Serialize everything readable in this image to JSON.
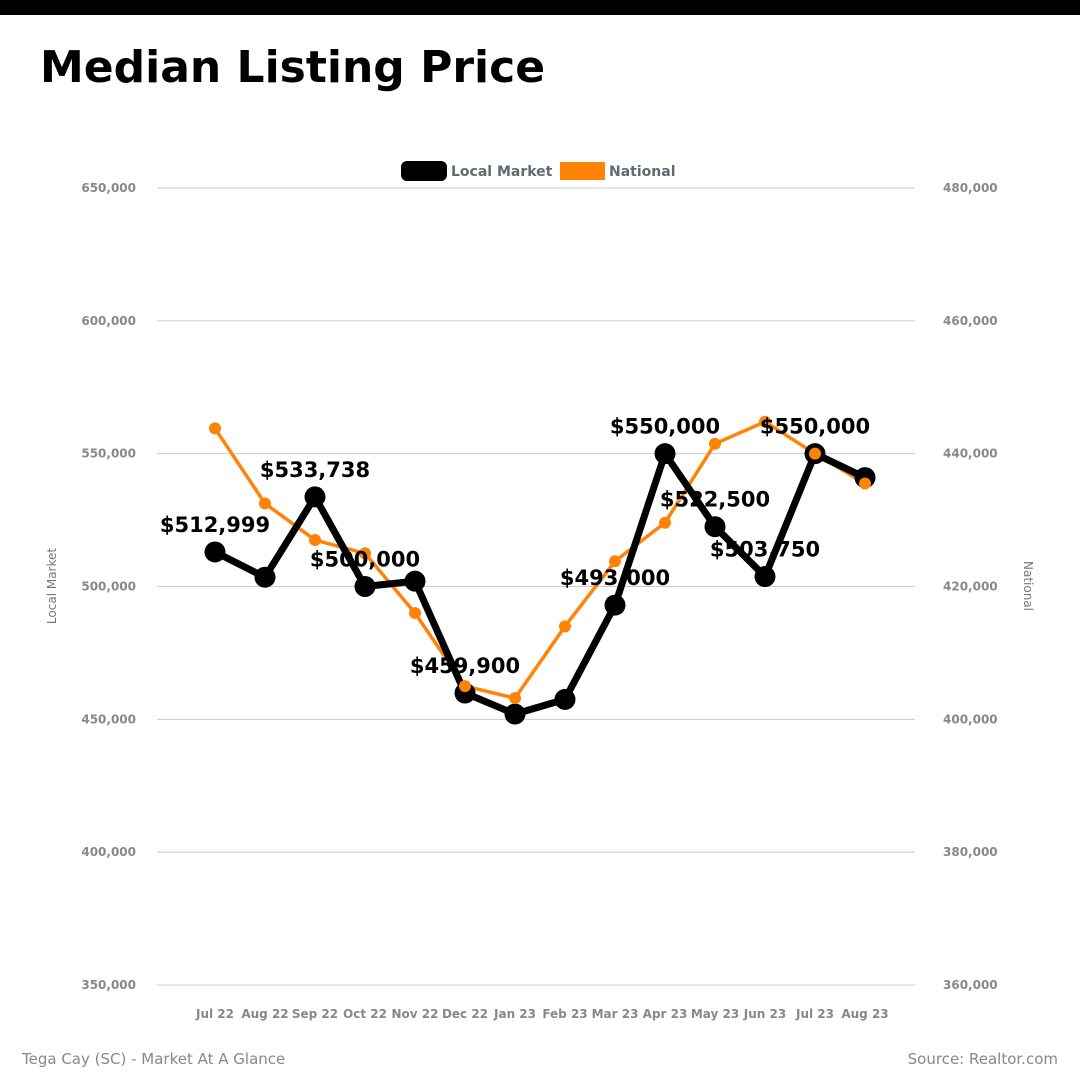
{
  "page": {
    "title": "Median Listing Price",
    "footer_left": "Tega Cay (SC) - Market At A Glance",
    "footer_right": "Source: Realtor.com"
  },
  "chart_data": {
    "type": "line",
    "title": "Median Listing Price",
    "categories": [
      "Jul 22",
      "Aug 22",
      "Sep 22",
      "Oct 22",
      "Nov 22",
      "Dec 22",
      "Jan 23",
      "Feb 23",
      "Mar 23",
      "Apr 23",
      "May 23",
      "Jun 23",
      "Jul 23",
      "Aug 23"
    ],
    "y_left": {
      "label": "Local Market",
      "ylim": [
        350000,
        650000
      ],
      "ticks": [
        350000,
        400000,
        450000,
        500000,
        550000,
        600000,
        650000
      ],
      "tick_labels": [
        "350,000",
        "400,000",
        "450,000",
        "500,000",
        "550,000",
        "600,000",
        "650,000"
      ]
    },
    "y_right": {
      "label": "National",
      "ylim": [
        360000,
        480000
      ],
      "ticks": [
        360000,
        380000,
        400000,
        420000,
        440000,
        460000,
        480000
      ],
      "tick_labels": [
        "360,000",
        "380,000",
        "400,000",
        "420,000",
        "440,000",
        "460,000",
        "480,000"
      ]
    },
    "grid": true,
    "legend_position": "top-center",
    "series": [
      {
        "name": "Local Market",
        "axis": "left",
        "color": "#000000",
        "values": [
          512999,
          503500,
          533738,
          500000,
          502000,
          459900,
          452000,
          457500,
          493000,
          550000,
          522500,
          503750,
          550000,
          541000
        ],
        "data_labels": [
          "$512,999",
          "",
          "$533,738",
          "$500,000",
          "",
          "$459,900",
          "",
          "",
          "$493,000",
          "$550,000",
          "$522,500",
          "$503,750",
          "$550,000",
          ""
        ]
      },
      {
        "name": "National",
        "axis": "right",
        "color": "#ff8307",
        "values": [
          443800,
          432500,
          427000,
          425000,
          416000,
          405000,
          403200,
          414000,
          423800,
          429600,
          441500,
          444800,
          440000,
          435500
        ]
      }
    ]
  }
}
